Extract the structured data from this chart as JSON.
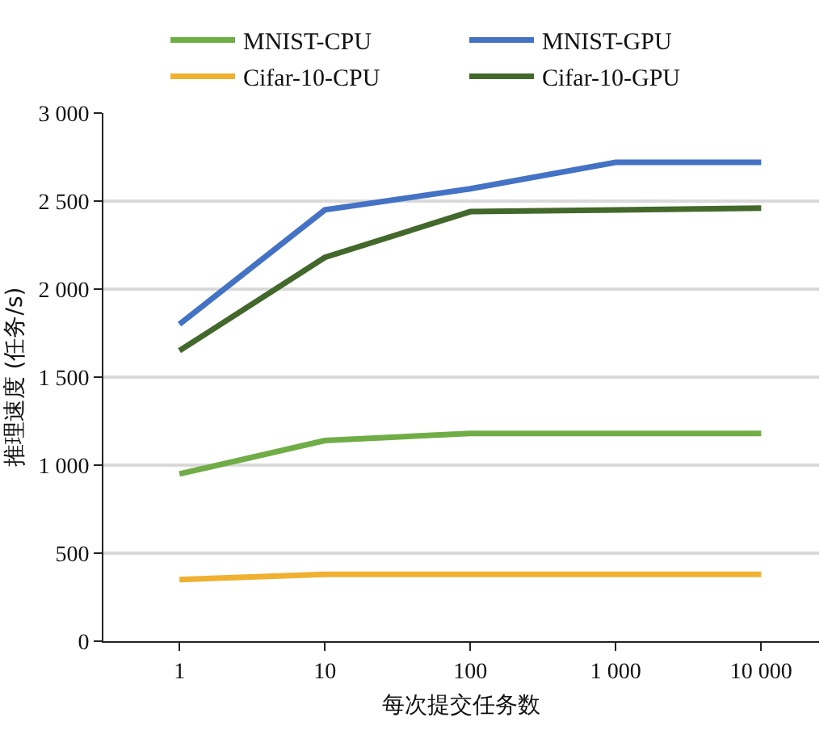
{
  "chart_data": {
    "type": "line",
    "xlabel": "每次提交任务数",
    "ylabel": "推理速度 (任务/s)",
    "x": [
      1,
      10,
      100,
      1000,
      10000
    ],
    "series": [
      {
        "name": "MNIST-CPU",
        "color": "#70ad47",
        "values": [
          950,
          1140,
          1180,
          1180,
          1180
        ]
      },
      {
        "name": "MNIST-GPU",
        "color": "#4472c4",
        "values": [
          1800,
          2450,
          2570,
          2720,
          2720
        ]
      },
      {
        "name": "Cifar-10-CPU",
        "color": "#f0b030",
        "values": [
          350,
          380,
          380,
          380,
          380
        ]
      },
      {
        "name": "Cifar-10-GPU",
        "color": "#43682b",
        "values": [
          1650,
          2180,
          2440,
          2450,
          2460
        ]
      }
    ],
    "log": "x",
    "xlim": [
      0.3,
      25000
    ],
    "xticks": [
      1,
      10,
      100,
      {
        "value": 1000,
        "label": "1 000"
      },
      {
        "value": 10000,
        "label": "10 000"
      }
    ],
    "ylim": [
      0,
      3000
    ],
    "yticks": [
      0,
      500,
      {
        "value": 1000,
        "label": "1 000"
      },
      {
        "value": 1500,
        "label": "1 500"
      },
      {
        "value": 2000,
        "label": "2 000"
      },
      {
        "value": 2500,
        "label": "2 500"
      },
      {
        "value": 3000,
        "label": "3 000"
      }
    ],
    "grid": "y",
    "legend": "top",
    "marker": "none",
    "line_style": "solid"
  }
}
